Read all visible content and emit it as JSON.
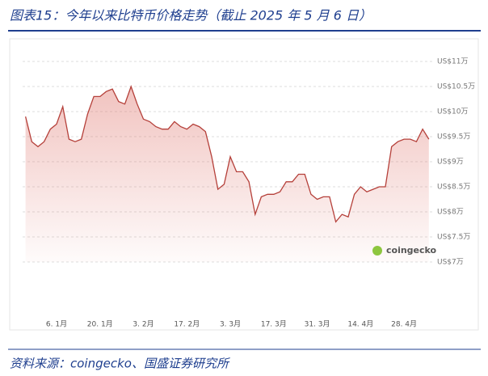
{
  "header": {
    "title": "图表15：今年以来比特币价格走势（截止 2025 年 5 月 6 日）"
  },
  "chart_data": {
    "type": "line",
    "watermark": "coingecko",
    "categories": [
      null,
      null,
      null,
      null,
      null,
      "6. 1月",
      null,
      null,
      null,
      null,
      null,
      null,
      "20. 1月",
      null,
      null,
      null,
      null,
      null,
      null,
      "3. 2月",
      null,
      null,
      null,
      null,
      null,
      null,
      "17. 2月",
      null,
      null,
      null,
      null,
      null,
      null,
      "3. 3月",
      null,
      null,
      null,
      null,
      null,
      null,
      "17. 3月",
      null,
      null,
      null,
      null,
      null,
      null,
      "31. 3月",
      null,
      null,
      null,
      null,
      null,
      null,
      "14. 4月",
      null,
      null,
      null,
      null,
      null,
      null,
      "28. 4月",
      null,
      null,
      null,
      null
    ],
    "values": [
      9.9,
      9.4,
      9.3,
      9.4,
      9.65,
      9.75,
      10.1,
      9.45,
      9.4,
      9.45,
      9.95,
      10.3,
      10.3,
      10.4,
      10.45,
      10.2,
      10.15,
      10.5,
      10.15,
      9.85,
      9.8,
      9.7,
      9.65,
      9.65,
      9.8,
      9.7,
      9.65,
      9.75,
      9.7,
      9.6,
      9.1,
      8.45,
      8.55,
      9.1,
      8.8,
      8.8,
      8.6,
      7.95,
      8.3,
      8.35,
      8.35,
      8.4,
      8.6,
      8.6,
      8.75,
      8.75,
      8.35,
      8.25,
      8.3,
      8.3,
      7.8,
      7.95,
      7.9,
      8.35,
      8.5,
      8.4,
      8.45,
      8.5,
      8.5,
      9.3,
      9.4,
      9.45,
      9.45,
      9.4,
      9.65,
      9.45
    ],
    "color": "#b5403a",
    "ylim": [
      7,
      11
    ],
    "yticks": [
      {
        "value": 7,
        "label": "US$7万"
      },
      {
        "value": 7.5,
        "label": "US$7.5万"
      },
      {
        "value": 8,
        "label": "US$8万"
      },
      {
        "value": 8.5,
        "label": "US$8.5万"
      },
      {
        "value": 9,
        "label": "US$9万"
      },
      {
        "value": 9.5,
        "label": "US$9.5万"
      },
      {
        "value": 10,
        "label": "US$10万"
      },
      {
        "value": 10.5,
        "label": "US$10.5万"
      },
      {
        "value": 11,
        "label": "US$11万"
      }
    ],
    "grid": true
  },
  "footer": {
    "source": "资料来源：coingecko、国盛证券研究所"
  }
}
